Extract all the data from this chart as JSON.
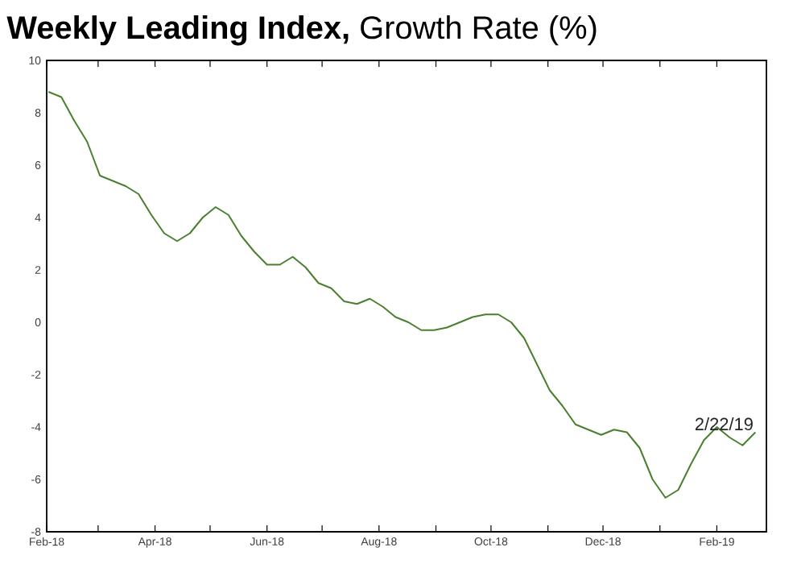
{
  "chart_data": {
    "type": "line",
    "title": "**Weekly Leading Index,** Growth Rate (%)",
    "x": [
      "2018-02-02",
      "2018-02-09",
      "2018-02-16",
      "2018-02-23",
      "2018-03-02",
      "2018-03-09",
      "2018-03-16",
      "2018-03-23",
      "2018-03-30",
      "2018-04-06",
      "2018-04-13",
      "2018-04-20",
      "2018-04-27",
      "2018-05-04",
      "2018-05-11",
      "2018-05-18",
      "2018-05-25",
      "2018-06-01",
      "2018-06-08",
      "2018-06-15",
      "2018-06-22",
      "2018-06-29",
      "2018-07-06",
      "2018-07-13",
      "2018-07-20",
      "2018-07-27",
      "2018-08-03",
      "2018-08-10",
      "2018-08-17",
      "2018-08-24",
      "2018-08-31",
      "2018-09-07",
      "2018-09-14",
      "2018-09-21",
      "2018-09-28",
      "2018-10-05",
      "2018-10-12",
      "2018-10-19",
      "2018-10-26",
      "2018-11-02",
      "2018-11-09",
      "2018-11-16",
      "2018-11-23",
      "2018-11-30",
      "2018-12-07",
      "2018-12-14",
      "2018-12-21",
      "2018-12-28",
      "2019-01-04",
      "2019-01-11",
      "2019-01-18",
      "2019-01-25",
      "2019-02-01",
      "2019-02-08",
      "2019-02-15",
      "2019-02-22"
    ],
    "series": [
      {
        "color": "#4a7f2f",
        "values": [
          8.8,
          8.6,
          7.7,
          6.9,
          5.6,
          5.4,
          5.2,
          4.9,
          4.1,
          3.4,
          3.1,
          3.4,
          4.0,
          4.4,
          4.1,
          3.3,
          2.7,
          2.2,
          2.2,
          2.5,
          2.1,
          1.5,
          1.3,
          0.8,
          0.7,
          0.9,
          0.6,
          0.2,
          0.0,
          -0.3,
          -0.3,
          -0.2,
          0.0,
          0.2,
          0.3,
          0.3,
          0.0,
          -0.6,
          -1.6,
          -2.6,
          -3.2,
          -3.9,
          -4.1,
          -4.3,
          -4.1,
          -4.2,
          -4.8,
          -6.0,
          -6.7,
          -6.4,
          -5.4,
          -4.5,
          -4.0,
          -4.4,
          -4.7,
          -4.2
        ]
      }
    ],
    "xlim": [
      "2018-02-01",
      "2019-02-28"
    ],
    "xticks": [
      {
        "value": "2018-02-01",
        "label": "Feb-18"
      },
      {
        "value": "2018-03-01",
        "label": null
      },
      {
        "value": "2018-04-01",
        "label": "Apr-18"
      },
      {
        "value": "2018-05-01",
        "label": null
      },
      {
        "value": "2018-06-01",
        "label": "Jun-18"
      },
      {
        "value": "2018-07-01",
        "label": null
      },
      {
        "value": "2018-08-01",
        "label": "Aug-18"
      },
      {
        "value": "2018-09-01",
        "label": null
      },
      {
        "value": "2018-10-01",
        "label": "Oct-18"
      },
      {
        "value": "2018-11-01",
        "label": null
      },
      {
        "value": "2018-12-01",
        "label": "Dec-18"
      },
      {
        "value": "2019-01-01",
        "label": null
      },
      {
        "value": "2019-02-01",
        "label": "Feb-19"
      }
    ],
    "ylim": [
      -8,
      10
    ],
    "yticks": [
      -8,
      -6,
      -4,
      -2,
      0,
      2,
      4,
      6,
      8,
      10
    ],
    "annotations": [
      {
        "text": "2/22/19",
        "x": "2019-02-22",
        "y": -4.2
      }
    ],
    "grid": false,
    "marker": "none",
    "line_style": "solid"
  }
}
